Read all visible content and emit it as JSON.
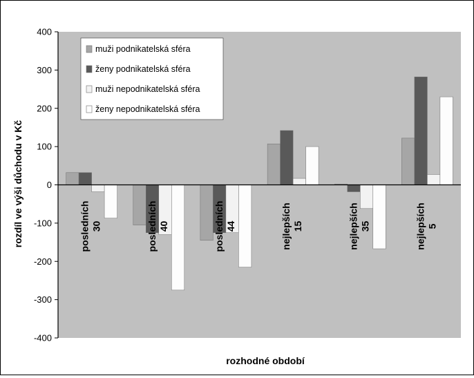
{
  "chart_data": {
    "type": "bar",
    "title": "",
    "ylabel": "rozdíl ve výši důchodu v Kč",
    "xlabel": "rozhodné období",
    "ylim": [
      -400,
      400
    ],
    "yticks": [
      "400",
      "300",
      "200",
      "100",
      "0",
      "-100",
      "-200",
      "-300",
      "-400"
    ],
    "ytick_values": [
      400,
      300,
      200,
      100,
      0,
      -100,
      -200,
      -300,
      -400
    ],
    "grid": false,
    "legend_position": "top-left",
    "categories": [
      {
        "line1": "posledních",
        "line2": "30"
      },
      {
        "line1": "posledních",
        "line2": "40"
      },
      {
        "line1": "posledních",
        "line2": "44"
      },
      {
        "line1": "nejlepších",
        "line2": "15"
      },
      {
        "line1": "nejlepších",
        "line2": "35"
      },
      {
        "line1": "nejlepších",
        "line2": "5"
      }
    ],
    "series": [
      {
        "name": "muži podnikatelská sféra",
        "color": "#a6a6a6",
        "values": [
          32,
          -105,
          -145,
          107,
          2,
          122
        ]
      },
      {
        "name": "ženy podnikatelská sféra",
        "color": "#595959",
        "values": [
          32,
          -125,
          -125,
          142,
          -18,
          282
        ]
      },
      {
        "name": "muži nepodnikatelská sféra",
        "color": "#f2f2f2",
        "values": [
          -18,
          -130,
          -125,
          17,
          -62,
          27
        ]
      },
      {
        "name": "ženy nepodnikatelská sféra",
        "color": "#fdfdfd",
        "values": [
          -87,
          -275,
          -215,
          100,
          -167,
          230
        ]
      }
    ],
    "colors": {
      "plot_background": "#c0c0c0",
      "axis": "#000000"
    }
  }
}
